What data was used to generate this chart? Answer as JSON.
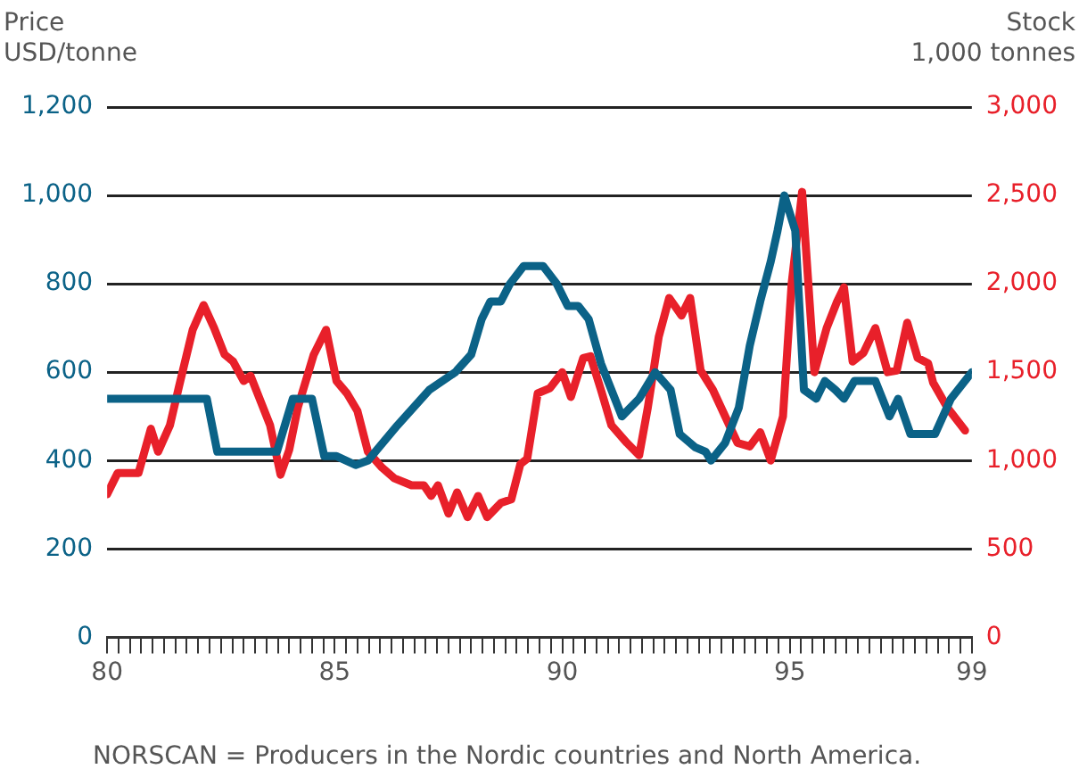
{
  "chart_data": {
    "type": "line",
    "ylabel": "Price\nUSD/tonne",
    "y2label": "Stock\n1,000 tonnes",
    "annotations": [
      "NORSCAN = Producers in the Nordic countries and North America."
    ],
    "xlim": [
      80,
      99
    ],
    "xticks": [
      80,
      {
        "value": 80.25,
        "label": null
      },
      {
        "value": 80.5,
        "label": null
      },
      {
        "value": 80.75,
        "label": null
      },
      {
        "value": 81,
        "label": null
      },
      {
        "value": 81.25,
        "label": null
      },
      {
        "value": 81.5,
        "label": null
      },
      {
        "value": 81.75,
        "label": null
      },
      {
        "value": 82,
        "label": null
      },
      {
        "value": 82.25,
        "label": null
      },
      {
        "value": 82.5,
        "label": null
      },
      {
        "value": 82.75,
        "label": null
      },
      {
        "value": 83,
        "label": null
      },
      {
        "value": 83.25,
        "label": null
      },
      {
        "value": 83.5,
        "label": null
      },
      {
        "value": 83.75,
        "label": null
      },
      {
        "value": 84,
        "label": null
      },
      {
        "value": 84.25,
        "label": null
      },
      {
        "value": 84.5,
        "label": null
      },
      {
        "value": 84.75,
        "label": null
      },
      85,
      {
        "value": 85.25,
        "label": null
      },
      {
        "value": 85.5,
        "label": null
      },
      {
        "value": 85.75,
        "label": null
      },
      {
        "value": 86,
        "label": null
      },
      {
        "value": 86.25,
        "label": null
      },
      {
        "value": 86.5,
        "label": null
      },
      {
        "value": 86.75,
        "label": null
      },
      {
        "value": 87,
        "label": null
      },
      {
        "value": 87.25,
        "label": null
      },
      {
        "value": 87.5,
        "label": null
      },
      {
        "value": 87.75,
        "label": null
      },
      {
        "value": 88,
        "label": null
      },
      {
        "value": 88.25,
        "label": null
      },
      {
        "value": 88.5,
        "label": null
      },
      {
        "value": 88.75,
        "label": null
      },
      {
        "value": 89,
        "label": null
      },
      {
        "value": 89.25,
        "label": null
      },
      {
        "value": 89.5,
        "label": null
      },
      {
        "value": 89.75,
        "label": null
      },
      90,
      {
        "value": 90.25,
        "label": null
      },
      {
        "value": 90.5,
        "label": null
      },
      {
        "value": 90.75,
        "label": null
      },
      {
        "value": 91,
        "label": null
      },
      {
        "value": 91.25,
        "label": null
      },
      {
        "value": 91.5,
        "label": null
      },
      {
        "value": 91.75,
        "label": null
      },
      {
        "value": 92,
        "label": null
      },
      {
        "value": 92.25,
        "label": null
      },
      {
        "value": 92.5,
        "label": null
      },
      {
        "value": 92.75,
        "label": null
      },
      {
        "value": 93,
        "label": null
      },
      {
        "value": 93.25,
        "label": null
      },
      {
        "value": 93.5,
        "label": null
      },
      {
        "value": 93.75,
        "label": null
      },
      {
        "value": 94,
        "label": null
      },
      {
        "value": 94.25,
        "label": null
      },
      {
        "value": 94.5,
        "label": null
      },
      {
        "value": 94.75,
        "label": null
      },
      95,
      {
        "value": 95.25,
        "label": null
      },
      {
        "value": 95.5,
        "label": null
      },
      {
        "value": 95.75,
        "label": null
      },
      {
        "value": 96,
        "label": null
      },
      {
        "value": 96.25,
        "label": null
      },
      {
        "value": 96.5,
        "label": null
      },
      {
        "value": 96.75,
        "label": null
      },
      {
        "value": 97,
        "label": null
      },
      {
        "value": 97.25,
        "label": null
      },
      {
        "value": 97.5,
        "label": null
      },
      {
        "value": 97.75,
        "label": null
      },
      {
        "value": 98,
        "label": null
      },
      {
        "value": 98.25,
        "label": null
      },
      {
        "value": 98.5,
        "label": null
      },
      {
        "value": 98.75,
        "label": null
      },
      99
    ],
    "ylim": [
      0,
      1200
    ],
    "yticks": [
      0,
      200,
      400,
      600,
      800,
      {
        "value": 1000,
        "label": "1,000"
      },
      {
        "value": 1200,
        "label": "1,200"
      }
    ],
    "y2lim": [
      0,
      3000
    ],
    "y2ticks": [
      0,
      500,
      {
        "value": 1000,
        "label": "1,000"
      },
      {
        "value": 1500,
        "label": "1,500"
      },
      {
        "value": 2000,
        "label": "2,000"
      },
      {
        "value": 2500,
        "label": "2,500"
      },
      {
        "value": 3000,
        "label": "3,000"
      }
    ],
    "grid": "y",
    "series": [
      {
        "color": "#0b6287",
        "x": [
          80,
          82.19,
          82.42,
          83.73,
          84.08,
          84.5,
          84.77,
          85.04,
          85.46,
          85.73,
          86.38,
          87.08,
          87.65,
          88,
          88.23,
          88.42,
          88.65,
          88.85,
          89.15,
          89.58,
          89.88,
          90.12,
          90.35,
          90.58,
          90.85,
          91.31,
          91.69,
          92.04,
          92.38,
          92.58,
          92.92,
          93.15,
          93.27,
          93.58,
          93.88,
          94.12,
          94.35,
          94.58,
          94.73,
          94.88,
          95.12,
          95.31,
          95.58,
          95.77,
          96,
          96.19,
          96.42,
          96.88,
          97.19,
          97.38,
          97.65,
          98.19,
          98.54,
          99
        ],
        "values": [
          540,
          540,
          420,
          420,
          540,
          540,
          410,
          410,
          390,
          400,
          480,
          560,
          600,
          640,
          720,
          760,
          760,
          800,
          840,
          840,
          800,
          750,
          750,
          720,
          620,
          500,
          540,
          600,
          560,
          460,
          430,
          420,
          400,
          440,
          520,
          660,
          760,
          850,
          920,
          1000,
          920,
          560,
          540,
          580,
          560,
          540,
          580,
          580,
          500,
          540,
          460,
          460,
          540,
          600
        ]
      },
      {
        "color": "#e8202a",
        "axis": "y2",
        "x": [
          80,
          80.23,
          80.69,
          80.96,
          81.12,
          81.38,
          81.58,
          81.88,
          82.12,
          82.35,
          82.58,
          82.77,
          83,
          83.15,
          83.58,
          83.81,
          84,
          84.19,
          84.54,
          84.81,
          85.04,
          85.27,
          85.5,
          85.73,
          86.04,
          86.31,
          86.69,
          86.96,
          87.12,
          87.27,
          87.5,
          87.69,
          87.92,
          88.15,
          88.35,
          88.65,
          88.88,
          89.08,
          89.23,
          89.46,
          89.73,
          90,
          90.19,
          90.46,
          90.62,
          90.85,
          91.08,
          91.42,
          91.69,
          91.88,
          92.12,
          92.35,
          92.62,
          92.81,
          93.04,
          93.31,
          93.58,
          93.85,
          94.12,
          94.35,
          94.58,
          94.85,
          95.04,
          95.27,
          95.54,
          95.81,
          96.04,
          96.19,
          96.38,
          96.62,
          96.88,
          97.15,
          97.35,
          97.58,
          97.81,
          98.04,
          98.15,
          98.46,
          98.85
        ],
        "values": [
          810,
          930,
          930,
          1180,
          1050,
          1200,
          1420,
          1740,
          1880,
          1750,
          1600,
          1560,
          1450,
          1480,
          1200,
          920,
          1060,
          1300,
          1600,
          1740,
          1450,
          1380,
          1280,
          1050,
          960,
          900,
          860,
          860,
          800,
          860,
          700,
          820,
          680,
          800,
          680,
          760,
          780,
          980,
          1010,
          1380,
          1410,
          1500,
          1360,
          1580,
          1590,
          1400,
          1200,
          1100,
          1030,
          1300,
          1700,
          1920,
          1820,
          1920,
          1510,
          1400,
          1250,
          1100,
          1080,
          1160,
          1000,
          1250,
          2000,
          2520,
          1500,
          1750,
          1900,
          1980,
          1560,
          1610,
          1750,
          1500,
          1510,
          1780,
          1580,
          1550,
          1440,
          1300,
          1170
        ]
      }
    ],
    "legend": false,
    "marker": "none",
    "line_style": "solid"
  }
}
